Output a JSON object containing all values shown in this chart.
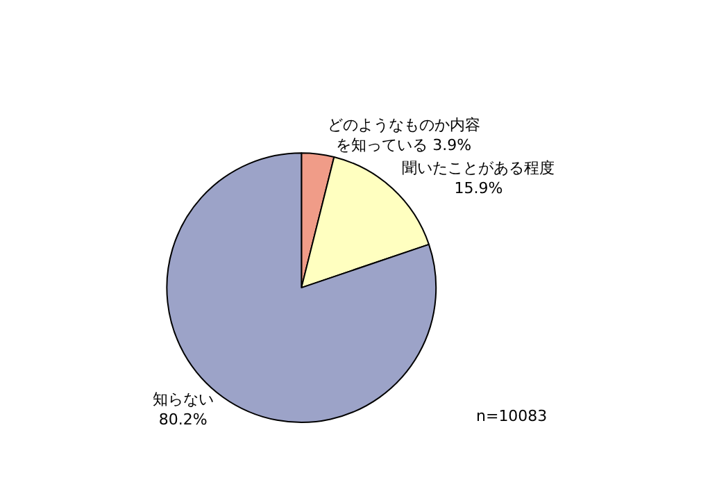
{
  "chart_data": {
    "type": "pie",
    "categories": [
      "どのようなものか内容を知っている",
      "聞いたことがある程度",
      "知らない"
    ],
    "values": [
      3.9,
      15.9,
      80.2
    ],
    "value_labels": [
      "3.9%",
      "15.9%",
      "80.2%"
    ],
    "colors": [
      "#f09c88",
      "#ffffc0",
      "#9ca3c8"
    ],
    "annotations": [
      "n=10083"
    ],
    "legend": false
  }
}
